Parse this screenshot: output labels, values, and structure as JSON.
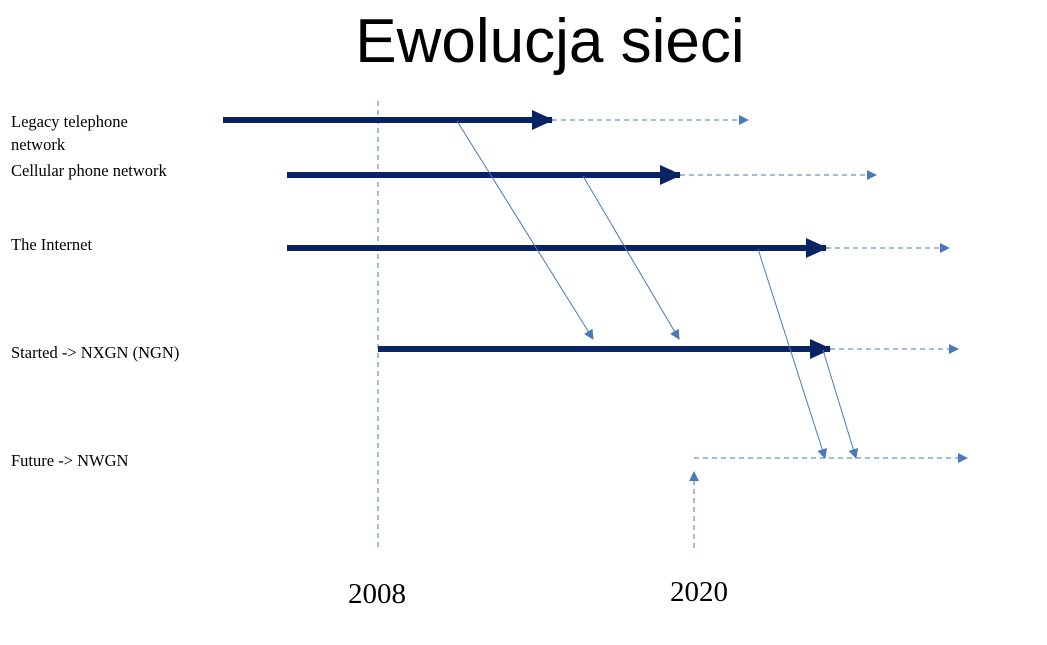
{
  "title": "Ewolucja sieci",
  "rows": [
    {
      "id": "legacy",
      "label_line1": "Legacy telephone",
      "label_line2": "network"
    },
    {
      "id": "cellular",
      "label_line1": "Cellular phone network"
    },
    {
      "id": "internet",
      "label_line1": "The Internet"
    },
    {
      "id": "nxgn",
      "label_line1": "Started  -> NXGN (NGN)"
    },
    {
      "id": "nwgn",
      "label_line1": "Future -> NWGN"
    }
  ],
  "years": {
    "start": "2008",
    "future": "2020"
  },
  "colors": {
    "main_arrow": "#0a2463",
    "dashed_arrow": "#4a7ab8",
    "guide": "#4a7ab8"
  }
}
